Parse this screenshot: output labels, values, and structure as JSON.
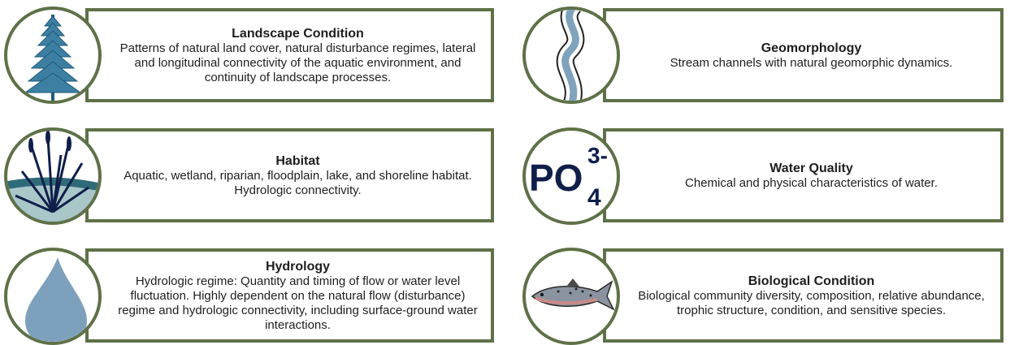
{
  "cards": [
    {
      "title": "Landscape Condition",
      "description": "Patterns of natural land cover, natural disturbance regimes, lateral and longitudinal connectivity of the aquatic environment, and continuity of landscape processes."
    },
    {
      "title": "Geomorphology",
      "description": "Stream channels with natural geomorphic dynamics."
    },
    {
      "title": "Habitat",
      "description": "Aquatic, wetland, riparian, floodplain, lake, and shoreline habitat. Hydrologic connectivity."
    },
    {
      "title": "Water Quality",
      "description": "Chemical and physical characteristics of water."
    },
    {
      "title": "Hydrology",
      "description": "Hydrologic regime: Quantity and timing of flow or water level fluctuation. Highly dependent on the natural flow (disturbance) regime and hydrologic connectivity, including surface-ground water interactions."
    },
    {
      "title": "Biological Condition",
      "description": "Biological community diversity, composition, relative abundance, trophic structure, condition, and sensitive species."
    }
  ],
  "icon_text": {
    "main": "PO",
    "subscript": "4",
    "superscript": "3-"
  }
}
